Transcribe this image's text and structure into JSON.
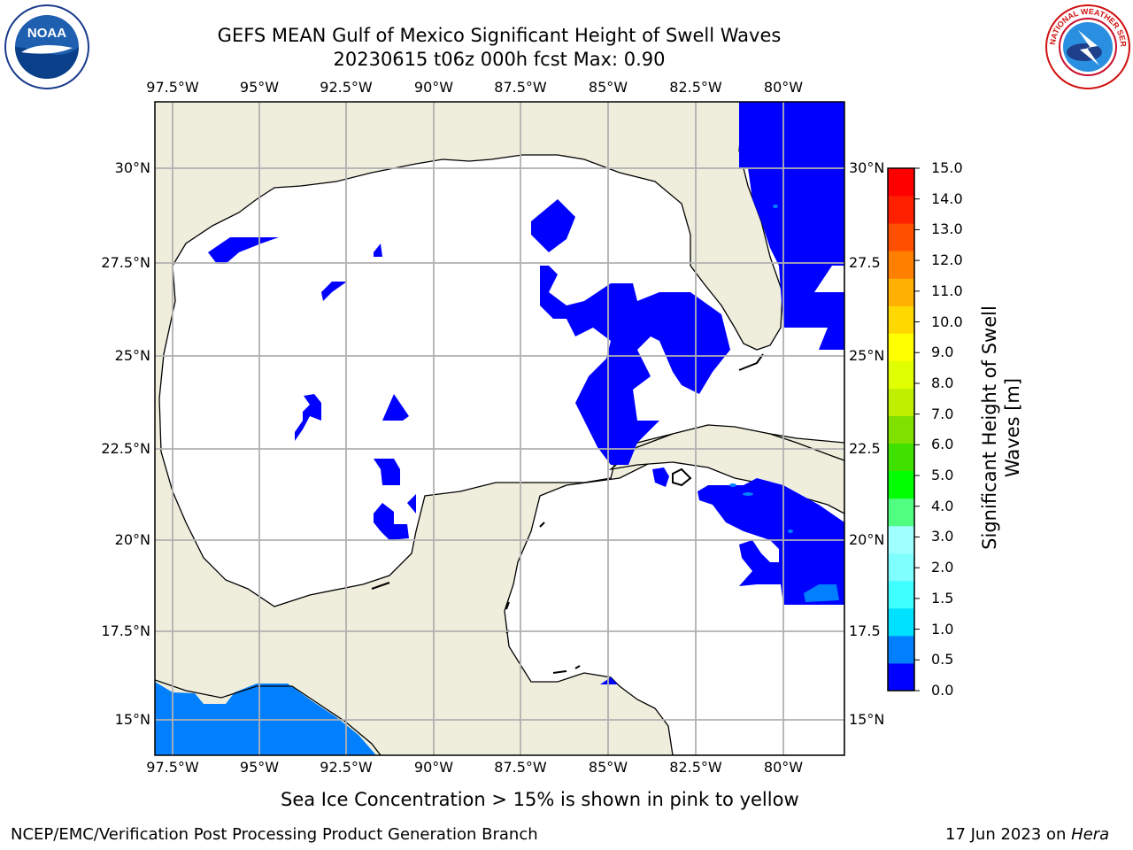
{
  "header": {
    "title_line1": "GEFS MEAN Gulf of Mexico Significant Height of Swell Waves",
    "title_line2": "20230615 t06z 000h fcst   Max: 0.90"
  },
  "logos": {
    "left": {
      "name": "noaa-logo",
      "text": "NOAA"
    },
    "right": {
      "name": "nws-logo",
      "text": "NATIONAL WEATHER SERVICE"
    }
  },
  "map": {
    "lon_ticks": [
      "97.5°W",
      "95°W",
      "92.5°W",
      "90°W",
      "87.5°W",
      "85°W",
      "82.5°W",
      "80°W"
    ],
    "lat_ticks_left": [
      "30°N",
      "27.5°N",
      "25°N",
      "22.5°N",
      "20°N",
      "17.5°N",
      "15°N"
    ],
    "lat_ticks_right": [
      "30°N",
      "27.5",
      "25°N",
      "22.5",
      "20°N",
      "17.5",
      "15°N"
    ],
    "colors": {
      "land": "#efeedd",
      "ocean": "#ffffff",
      "grid": "#b0b0b0",
      "swell_low": "#0000ff",
      "swell_mid": "#0080ff"
    }
  },
  "colorbar": {
    "label": "Significant Height of Swell Waves [m]",
    "ticks": [
      "15.0",
      "14.0",
      "13.0",
      "12.0",
      "11.0",
      "10.0",
      "9.0",
      "8.0",
      "7.0",
      "6.0",
      "5.0",
      "4.0",
      "3.0",
      "2.0",
      "1.5",
      "1.0",
      "0.5",
      "0.0"
    ],
    "colors": [
      "#0000ff",
      "#0080ff",
      "#00e0ff",
      "#40ffff",
      "#80ffff",
      "#a0ffff",
      "#50ff80",
      "#00ff00",
      "#40e000",
      "#80e000",
      "#c0f000",
      "#e0ff00",
      "#ffff00",
      "#ffd800",
      "#ffb000",
      "#ff8000",
      "#ff5000",
      "#ff2000",
      "#ff0000"
    ]
  },
  "caption": "Sea Ice Concentration > 15% is shown in pink to yellow",
  "footer": {
    "left": "NCEP/EMC/Verification Post Processing Product Generation Branch",
    "right_prefix": "17 Jun 2023 on ",
    "right_host": "Hera"
  }
}
